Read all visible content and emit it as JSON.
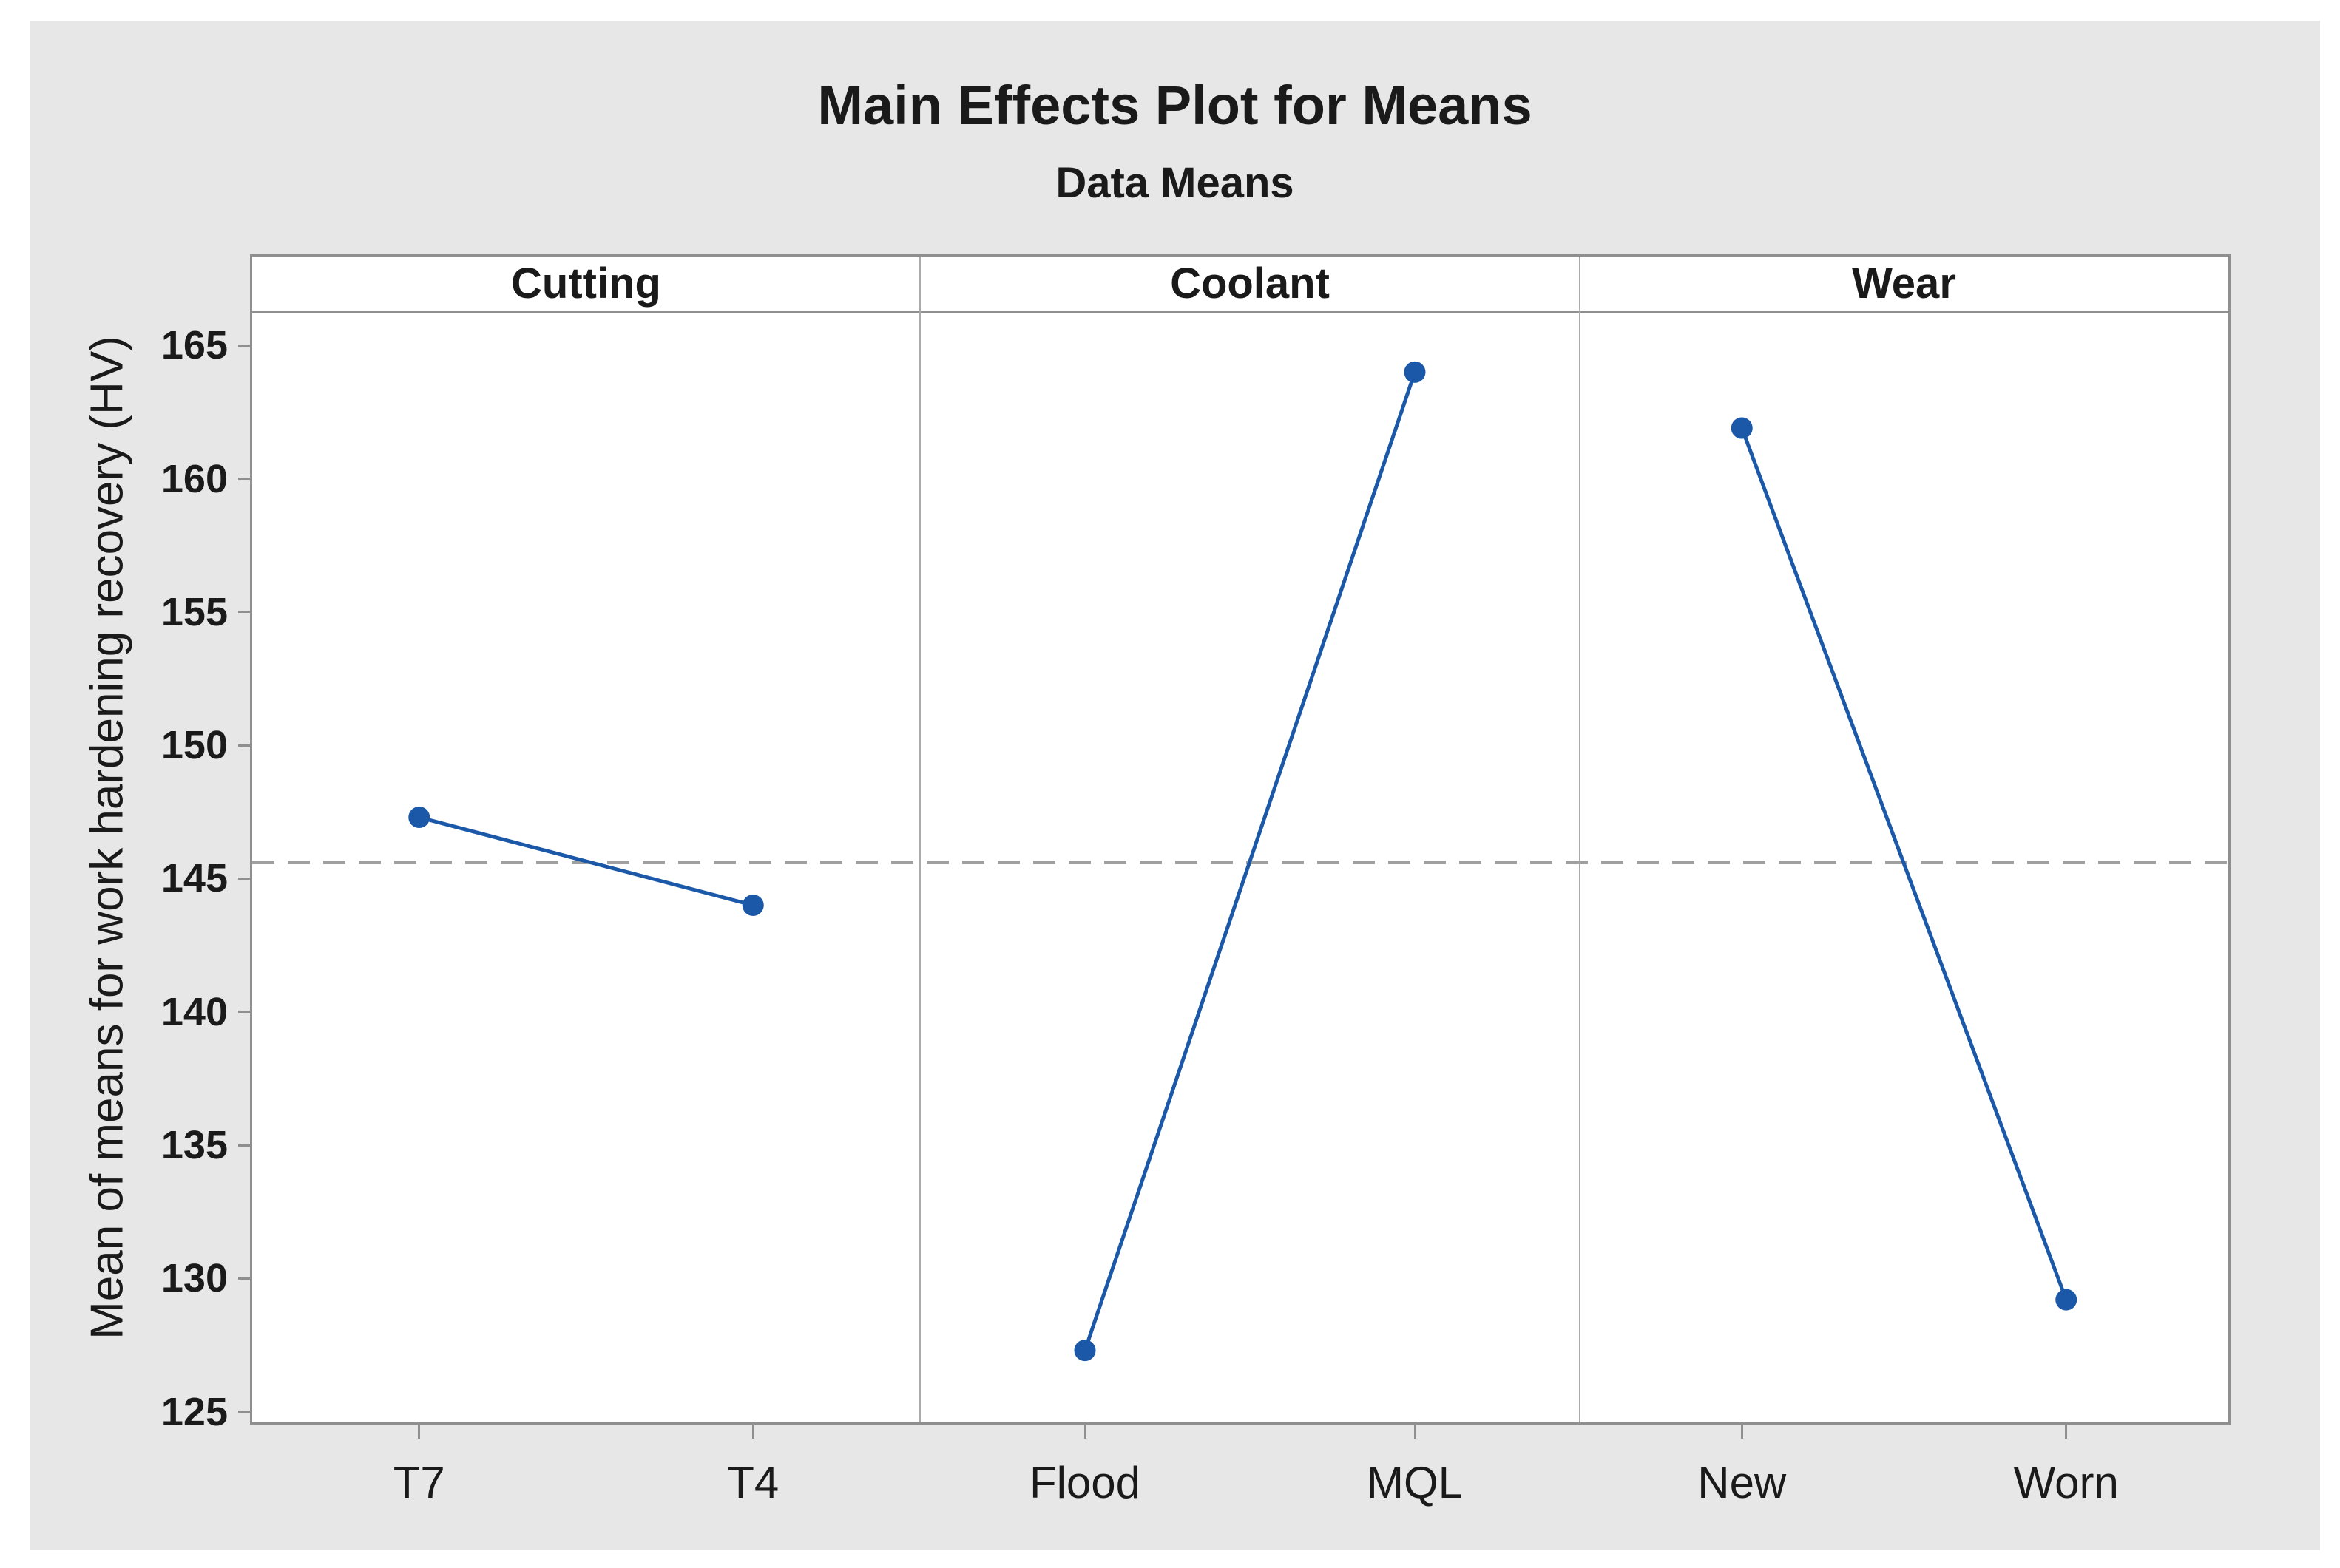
{
  "title": "Main Effects Plot for Means",
  "subtitle": "Data Means",
  "chart_data": {
    "type": "line",
    "title": "Main Effects Plot for Means",
    "subtitle": "Data Means",
    "ylabel": "Mean of means for work hardening recovery (HV)",
    "ylim": [
      124.6,
      166.2
    ],
    "yticks": [
      165,
      160,
      155,
      150,
      145,
      140,
      135,
      130,
      125
    ],
    "grid": "off",
    "legend": "none",
    "reference_line": {
      "name": "grand-mean",
      "value": 145.6,
      "style": "dashed"
    },
    "panels": [
      {
        "label": "Cutting",
        "categories": [
          "T7",
          "T4"
        ],
        "values": [
          147.3,
          144.0
        ]
      },
      {
        "label": "Coolant",
        "categories": [
          "Flood",
          "MQL"
        ],
        "values": [
          127.3,
          164.0
        ]
      },
      {
        "label": "Wear",
        "categories": [
          "New",
          "Worn"
        ],
        "values": [
          161.9,
          129.2
        ]
      }
    ],
    "colors": {
      "series": "#1B58A8",
      "reference_line": "#A0A0A0",
      "frame_border": "#8F8F8F",
      "panel_divider": "#ABABAB",
      "tick": "#8F8F8F",
      "plot_background": "#FFFFFF",
      "graph_background": "#E7E7E7",
      "text": "#1A1A1A"
    }
  }
}
